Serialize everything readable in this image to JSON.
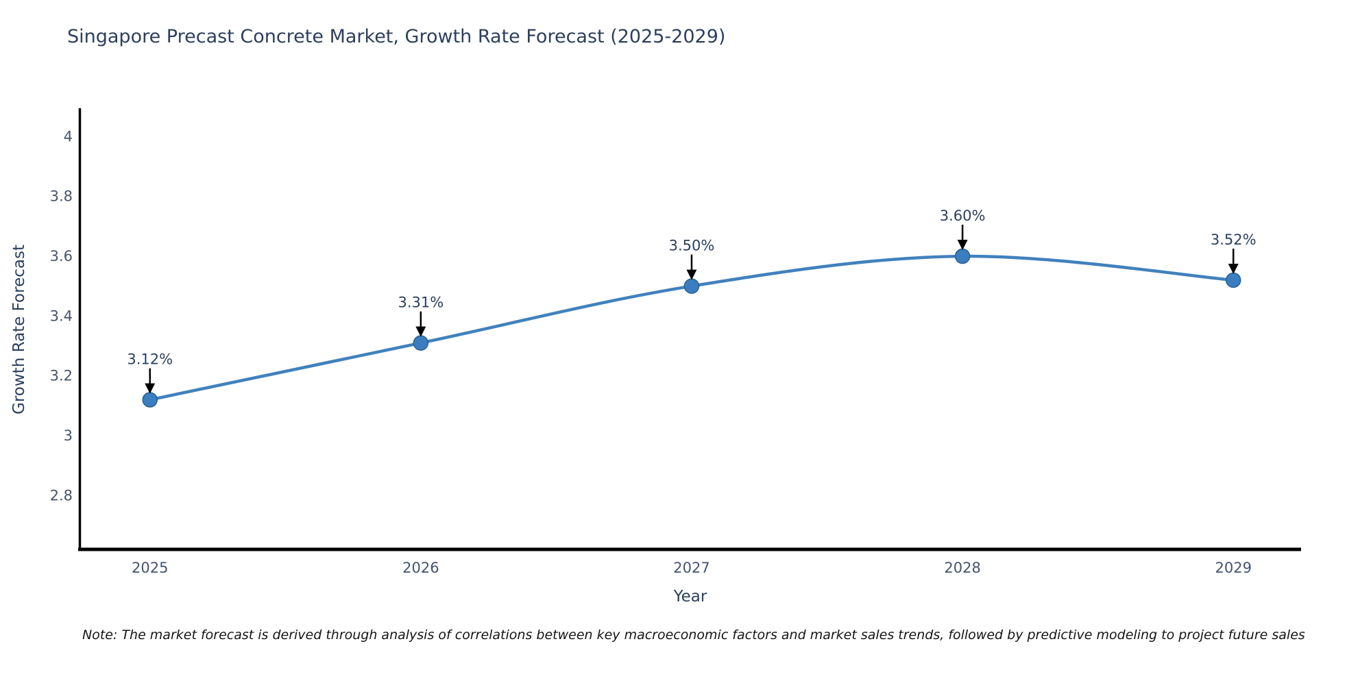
{
  "figure": {
    "note": "Note: The market forecast is derived through analysis of correlations between key macroeconomic factors and market sales trends, followed by predictive modeling to project future sales"
  },
  "chart_data": {
    "type": "line",
    "title": "Singapore Precast Concrete Market, Growth Rate Forecast (2025-2029)",
    "xlabel": "Year",
    "ylabel": "Growth Rate Forecast",
    "x": [
      2025,
      2026,
      2027,
      2028,
      2029
    ],
    "values": [
      3.12,
      3.31,
      3.5,
      3.6,
      3.52
    ],
    "annotations": [
      "3.12%",
      "3.31%",
      "3.50%",
      "3.60%",
      "3.52%"
    ],
    "x_tick_labels": [
      "2025",
      "2026",
      "2027",
      "2028",
      "2029"
    ],
    "y_ticks": [
      4,
      3.8,
      3.6,
      3.4,
      3.2,
      3,
      2.8
    ],
    "y_tick_labels": [
      "4",
      "3.8",
      "3.6",
      "3.4",
      "3.2",
      "3",
      "2.8"
    ],
    "xlim": [
      2024.74,
      2029.25
    ],
    "ylim": [
      2.62,
      4.09
    ],
    "grid": false,
    "legend": "none",
    "line_shape": "spline",
    "colors": {
      "line": "#4181bd",
      "marker": "#3a7ebf",
      "marker_edge": "#2a5f94",
      "arrow": "#000000",
      "annotation_text": "#2a3f5f",
      "tick_text": "#45546e",
      "axis": "#000000",
      "title_text": "#2d3f5e"
    }
  }
}
